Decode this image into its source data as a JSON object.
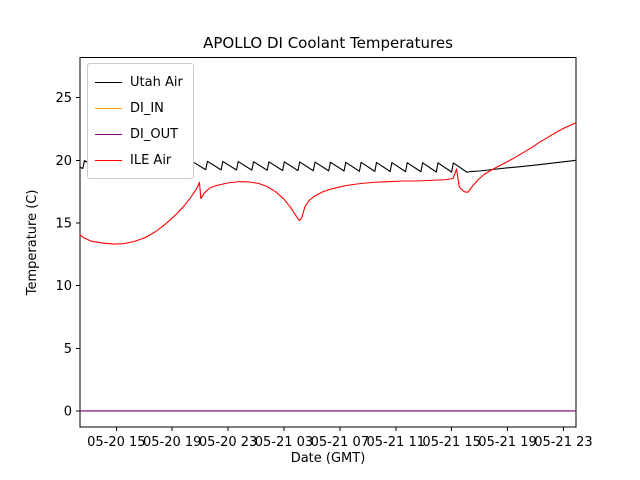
{
  "chart_data": {
    "type": "line",
    "title": "APOLLO DI Coolant Temperatures",
    "xlabel": "Date (GMT)",
    "ylabel": "Temperature (C)",
    "x_unit": "hours, where 15 corresponds to tick label 05-20 15 and 47 to 05-21 23",
    "xlim": [
      12.4,
      47.9
    ],
    "ylim": [
      -1.3,
      28.2
    ],
    "grid": false,
    "legend_position": "upper left",
    "y_ticks": [
      0,
      5,
      10,
      15,
      20,
      25
    ],
    "x_ticks": [
      {
        "value": 15,
        "label": "05-20 15"
      },
      {
        "value": 19,
        "label": "05-20 19"
      },
      {
        "value": 23,
        "label": "05-20 23"
      },
      {
        "value": 27,
        "label": "05-21 03"
      },
      {
        "value": 31,
        "label": "05-21 07"
      },
      {
        "value": 35,
        "label": "05-21 11"
      },
      {
        "value": 39,
        "label": "05-21 15"
      },
      {
        "value": 43,
        "label": "05-21 19"
      },
      {
        "value": 47,
        "label": "05-21 23"
      }
    ],
    "series": [
      {
        "name": "Utah Air",
        "color": "#000000",
        "points": [
          [
            12.4,
            19.45
          ],
          [
            12.6,
            19.35
          ],
          [
            12.72,
            19.98
          ],
          [
            13.7,
            19.34
          ],
          [
            13.82,
            19.97
          ],
          [
            14.8,
            19.33
          ],
          [
            14.92,
            19.96
          ],
          [
            15.9,
            19.31
          ],
          [
            16.02,
            19.96
          ],
          [
            17.0,
            19.3
          ],
          [
            17.12,
            19.95
          ],
          [
            18.1,
            19.29
          ],
          [
            18.22,
            19.94
          ],
          [
            19.2,
            19.28
          ],
          [
            19.32,
            19.93
          ],
          [
            20.3,
            19.27
          ],
          [
            20.42,
            19.92
          ],
          [
            21.4,
            19.25
          ],
          [
            21.52,
            19.92
          ],
          [
            22.5,
            19.24
          ],
          [
            22.62,
            19.91
          ],
          [
            23.6,
            19.23
          ],
          [
            23.72,
            19.9
          ],
          [
            24.7,
            19.22
          ],
          [
            24.82,
            19.89
          ],
          [
            25.8,
            19.21
          ],
          [
            25.92,
            19.88
          ],
          [
            26.9,
            19.19
          ],
          [
            27.02,
            19.88
          ],
          [
            28.0,
            19.18
          ],
          [
            28.12,
            19.87
          ],
          [
            29.1,
            19.17
          ],
          [
            29.22,
            19.86
          ],
          [
            30.2,
            19.16
          ],
          [
            30.32,
            19.85
          ],
          [
            31.3,
            19.15
          ],
          [
            31.42,
            19.84
          ],
          [
            32.4,
            19.13
          ],
          [
            32.52,
            19.84
          ],
          [
            33.5,
            19.12
          ],
          [
            33.62,
            19.83
          ],
          [
            34.6,
            19.11
          ],
          [
            34.72,
            19.82
          ],
          [
            35.7,
            19.1
          ],
          [
            35.82,
            19.81
          ],
          [
            36.8,
            19.09
          ],
          [
            36.92,
            19.8
          ],
          [
            37.9,
            19.07
          ],
          [
            38.02,
            19.8
          ],
          [
            39.0,
            19.06
          ],
          [
            39.12,
            19.79
          ],
          [
            40.1,
            19.05
          ],
          [
            40.3,
            19.1
          ],
          [
            41.0,
            19.15
          ],
          [
            42.0,
            19.28
          ],
          [
            43.0,
            19.4
          ],
          [
            44.0,
            19.5
          ],
          [
            45.0,
            19.62
          ],
          [
            46.0,
            19.75
          ],
          [
            47.0,
            19.88
          ],
          [
            47.9,
            20.0
          ]
        ]
      },
      {
        "name": "DI_IN",
        "color": "#ffa500",
        "points": [
          [
            12.4,
            0
          ],
          [
            47.9,
            0
          ]
        ]
      },
      {
        "name": "DI_OUT",
        "color": "#800080",
        "points": [
          [
            12.4,
            0
          ],
          [
            47.9,
            0
          ]
        ]
      },
      {
        "name": "ILE Air",
        "color": "#ff0000",
        "points": [
          [
            12.4,
            14.05
          ],
          [
            12.7,
            13.8
          ],
          [
            13.2,
            13.55
          ],
          [
            14.0,
            13.4
          ],
          [
            14.8,
            13.32
          ],
          [
            15.5,
            13.35
          ],
          [
            16.2,
            13.5
          ],
          [
            17.0,
            13.8
          ],
          [
            17.8,
            14.3
          ],
          [
            18.5,
            14.9
          ],
          [
            19.2,
            15.6
          ],
          [
            19.8,
            16.3
          ],
          [
            20.3,
            17.0
          ],
          [
            20.6,
            17.5
          ],
          [
            20.8,
            17.85
          ],
          [
            20.95,
            18.25
          ],
          [
            21.05,
            16.95
          ],
          [
            21.3,
            17.4
          ],
          [
            21.7,
            17.8
          ],
          [
            22.2,
            18.0
          ],
          [
            23.0,
            18.2
          ],
          [
            23.8,
            18.3
          ],
          [
            24.5,
            18.28
          ],
          [
            25.2,
            18.15
          ],
          [
            25.8,
            17.9
          ],
          [
            26.4,
            17.5
          ],
          [
            27.0,
            16.9
          ],
          [
            27.5,
            16.2
          ],
          [
            27.9,
            15.5
          ],
          [
            28.1,
            15.2
          ],
          [
            28.25,
            15.35
          ],
          [
            28.5,
            16.3
          ],
          [
            28.8,
            16.8
          ],
          [
            29.2,
            17.15
          ],
          [
            29.8,
            17.5
          ],
          [
            30.5,
            17.75
          ],
          [
            31.5,
            18.0
          ],
          [
            32.5,
            18.15
          ],
          [
            33.5,
            18.25
          ],
          [
            34.5,
            18.3
          ],
          [
            35.5,
            18.35
          ],
          [
            36.5,
            18.35
          ],
          [
            37.5,
            18.4
          ],
          [
            38.5,
            18.45
          ],
          [
            39.1,
            18.55
          ],
          [
            39.35,
            19.3
          ],
          [
            39.55,
            17.85
          ],
          [
            39.9,
            17.5
          ],
          [
            40.15,
            17.45
          ],
          [
            40.5,
            17.95
          ],
          [
            40.9,
            18.45
          ],
          [
            41.3,
            18.85
          ],
          [
            41.8,
            19.2
          ],
          [
            42.3,
            19.5
          ],
          [
            42.9,
            19.85
          ],
          [
            43.5,
            20.2
          ],
          [
            44.1,
            20.6
          ],
          [
            44.7,
            21.0
          ],
          [
            45.3,
            21.45
          ],
          [
            45.9,
            21.85
          ],
          [
            46.5,
            22.25
          ],
          [
            47.1,
            22.6
          ],
          [
            47.6,
            22.85
          ],
          [
            47.9,
            23.0
          ]
        ]
      }
    ]
  }
}
